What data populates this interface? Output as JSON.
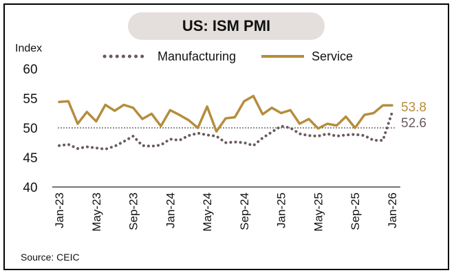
{
  "chart_data": {
    "type": "line",
    "title": "US: ISM PMI",
    "ylabel": "Index",
    "source": "Source: CEIC",
    "ylim": [
      40,
      60
    ],
    "yticks": [
      "40",
      "45",
      "50",
      "55",
      "60"
    ],
    "reference_line": 50,
    "x": [
      "Jan-23",
      "Feb-23",
      "Mar-23",
      "Apr-23",
      "May-23",
      "Jun-23",
      "Jul-23",
      "Aug-23",
      "Sep-23",
      "Oct-23",
      "Nov-23",
      "Dec-23",
      "Jan-24",
      "Feb-24",
      "Mar-24",
      "Apr-24",
      "May-24",
      "Jun-24",
      "Jul-24",
      "Aug-24",
      "Sep-24",
      "Oct-24",
      "Nov-24",
      "Dec-24",
      "Jan-25",
      "Feb-25",
      "Mar-25",
      "Apr-25",
      "May-25",
      "Jun-25",
      "Jul-25",
      "Aug-25",
      "Sep-25",
      "Oct-25",
      "Nov-25",
      "Dec-25",
      "Jan-26"
    ],
    "xticks": [
      "Jan-23",
      "May-23",
      "Sep-23",
      "Jan-24",
      "May-24",
      "Sep-24",
      "Jan-25",
      "May-25",
      "Sep-25",
      "Jan-26"
    ],
    "series": [
      {
        "name": "Manufacturing",
        "style": "dotted",
        "color": "#6b5a5c",
        "values": [
          47.0,
          47.2,
          46.5,
          46.8,
          46.6,
          46.4,
          46.9,
          47.7,
          48.6,
          47.0,
          46.9,
          47.1,
          48.1,
          47.9,
          48.7,
          49.1,
          48.8,
          48.6,
          47.5,
          47.6,
          47.5,
          47.0,
          48.3,
          49.3,
          50.3,
          50.0,
          49.0,
          48.7,
          48.6,
          49.0,
          48.6,
          48.8,
          48.9,
          48.7,
          47.9,
          47.9,
          52.6
        ],
        "end_label": "52.6"
      },
      {
        "name": "Service",
        "style": "solid",
        "color": "#b58d3d",
        "values": [
          54.4,
          54.5,
          50.7,
          52.7,
          51.1,
          53.9,
          52.9,
          53.9,
          53.4,
          51.5,
          52.4,
          50.3,
          53.0,
          52.2,
          51.3,
          50.0,
          53.6,
          49.4,
          51.6,
          51.8,
          54.5,
          55.4,
          52.3,
          53.4,
          52.5,
          53.0,
          50.7,
          51.5,
          49.9,
          50.7,
          50.4,
          51.9,
          50.0,
          52.2,
          52.5,
          53.8,
          53.8
        ],
        "end_label": "53.8"
      }
    ],
    "grid": false,
    "legend": "top-center"
  }
}
